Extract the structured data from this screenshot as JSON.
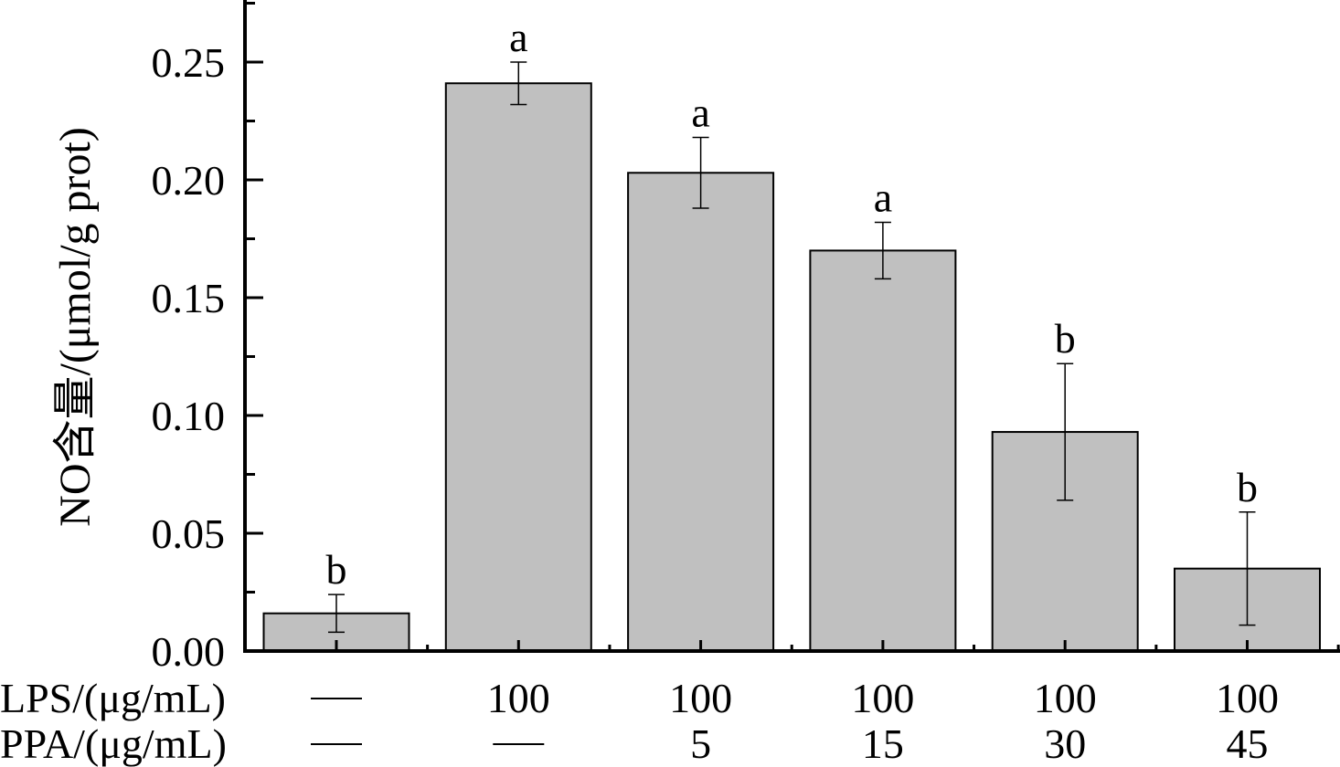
{
  "chart_data": {
    "type": "bar",
    "ylabel": "NO含量/(μmol/g prot)",
    "ylim": [
      0,
      0.25
    ],
    "yticks": [
      "0.00",
      "0.05",
      "0.10",
      "0.15",
      "0.20",
      "0.25"
    ],
    "grid": false,
    "categories": [
      {
        "lps": "—",
        "ppa": "—"
      },
      {
        "lps": "100",
        "ppa": "—"
      },
      {
        "lps": "100",
        "ppa": "5"
      },
      {
        "lps": "100",
        "ppa": "15"
      },
      {
        "lps": "100",
        "ppa": "30"
      },
      {
        "lps": "100",
        "ppa": "45"
      }
    ],
    "row_labels": {
      "lps": "LPS/(μg/mL)",
      "ppa": "PPA/(μg/mL)"
    },
    "values": [
      0.016,
      0.241,
      0.203,
      0.17,
      0.093,
      0.035
    ],
    "errors": [
      0.008,
      0.009,
      0.015,
      0.012,
      0.029,
      0.024
    ],
    "significance": [
      "b",
      "a",
      "a",
      "a",
      "b",
      "b"
    ],
    "colors": {
      "bar": "#c0c0c0",
      "stroke": "#000000"
    }
  }
}
